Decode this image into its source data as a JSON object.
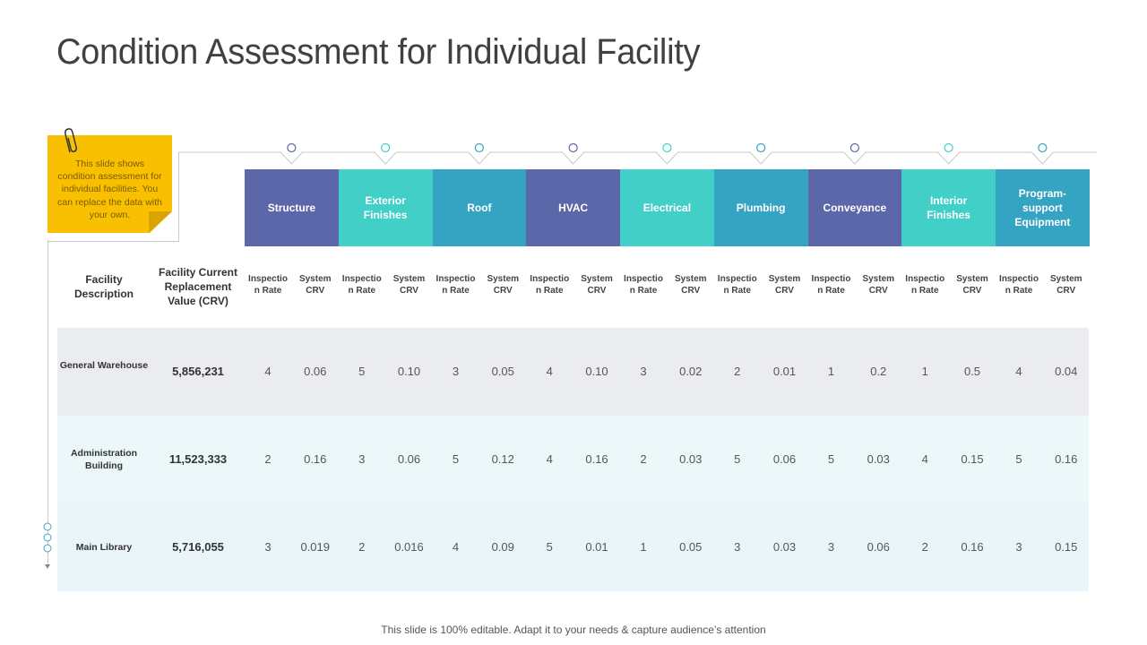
{
  "title": "Condition Assessment for Individual Facility",
  "note": "This slide shows condition assessment for individual facilities. You can replace the data with your own.",
  "columns": {
    "facility_description": "Facility Description",
    "crv": "Facility Current Replacement Value (CRV)",
    "inspection_rate": "Inspectio n Rate",
    "system_crv": "System CRV"
  },
  "categories": [
    {
      "label": "Structure",
      "color": "#5b67a8"
    },
    {
      "label": "Exterior Finishes",
      "color": "#42cfc8"
    },
    {
      "label": "Roof",
      "color": "#35a3c2"
    },
    {
      "label": "HVAC",
      "color": "#5b67a8"
    },
    {
      "label": "Electrical",
      "color": "#42cfc8"
    },
    {
      "label": "Plumbing",
      "color": "#35a3c2"
    },
    {
      "label": "Conveyance",
      "color": "#5b67a8"
    },
    {
      "label": "Interior Finishes",
      "color": "#42cfc8"
    },
    {
      "label": "Program-support Equipment",
      "color": "#35a3c2"
    }
  ],
  "rows": [
    {
      "name": "General Warehouse",
      "crv": "5,856,231",
      "values": [
        [
          "4",
          "0.06"
        ],
        [
          "5",
          "0.10"
        ],
        [
          "3",
          "0.05"
        ],
        [
          "4",
          "0.10"
        ],
        [
          "3",
          "0.02"
        ],
        [
          "2",
          "0.01"
        ],
        [
          "1",
          "0.2"
        ],
        [
          "1",
          "0.5"
        ],
        [
          "4",
          "0.04"
        ]
      ]
    },
    {
      "name": "Administration Building",
      "crv": "11,523,333",
      "values": [
        [
          "2",
          "0.16"
        ],
        [
          "3",
          "0.06"
        ],
        [
          "5",
          "0.12"
        ],
        [
          "4",
          "0.16"
        ],
        [
          "2",
          "0.03"
        ],
        [
          "5",
          "0.06"
        ],
        [
          "5",
          "0.03"
        ],
        [
          "4",
          "0.15"
        ],
        [
          "5",
          "0.16"
        ]
      ]
    },
    {
      "name": "Main Library",
      "crv": "5,716,055",
      "values": [
        [
          "3",
          "0.019"
        ],
        [
          "2",
          "0.016"
        ],
        [
          "4",
          "0.09"
        ],
        [
          "5",
          "0.01"
        ],
        [
          "1",
          "0.05"
        ],
        [
          "3",
          "0.03"
        ],
        [
          "3",
          "0.06"
        ],
        [
          "2",
          "0.16"
        ],
        [
          "3",
          "0.15"
        ]
      ]
    }
  ],
  "footer": "This slide is 100% editable. Adapt it to your needs & capture audience’s attention",
  "colors": {
    "note_bg": "#f8c000",
    "row_band_1": "#ebecf0",
    "row_band_2": "#ebf7f8",
    "row_band_3": "#e9f5f8",
    "connector": "#c9c9c9"
  }
}
